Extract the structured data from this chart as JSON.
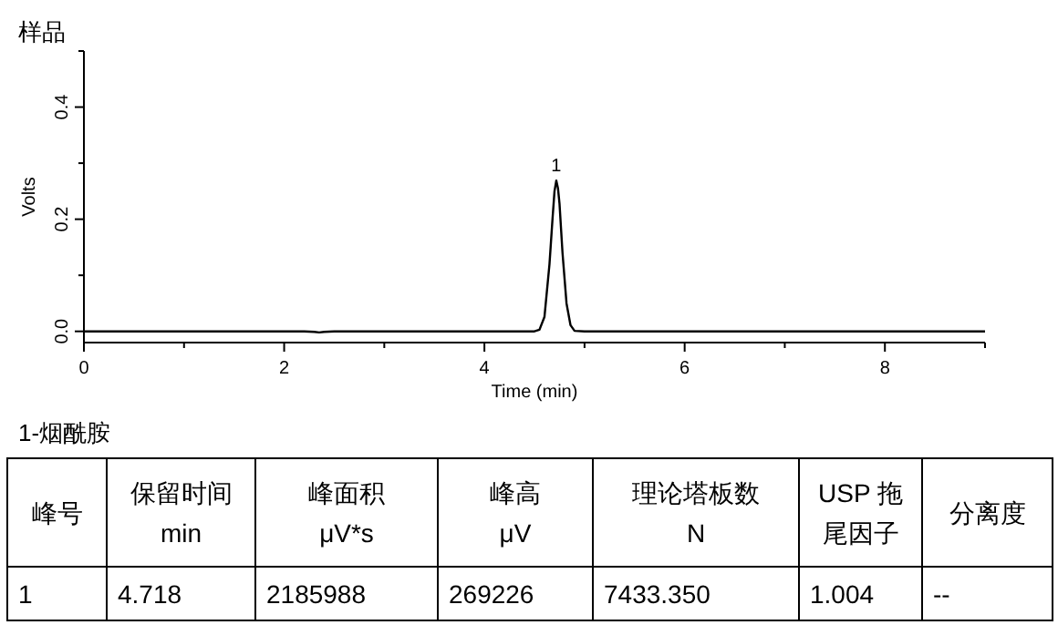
{
  "chart_data": {
    "type": "line",
    "title": "样品",
    "xlabel": "Time (min)",
    "ylabel": "Volts",
    "x": [
      0,
      2.2,
      2.3,
      2.35,
      2.4,
      2.5,
      4.5,
      4.55,
      4.6,
      4.65,
      4.68,
      4.7,
      4.718,
      4.735,
      4.75,
      4.78,
      4.82,
      4.86,
      4.9,
      5.0,
      9
    ],
    "series": [
      {
        "color": "#000000",
        "values": [
          0,
          0,
          -0.001,
          -0.002,
          -0.001,
          0,
          0,
          0.003,
          0.026,
          0.12,
          0.2,
          0.25,
          0.269,
          0.255,
          0.228,
          0.14,
          0.05,
          0.011,
          0.001,
          0,
          0
        ]
      }
    ],
    "xlim": [
      0,
      9
    ],
    "ylim": [
      -0.02,
      0.5
    ],
    "xticks": [
      0,
      2,
      4,
      6,
      8
    ],
    "yticks": [
      {
        "value": 0,
        "label": "0.0"
      },
      {
        "value": 0.2,
        "label": "0.2"
      },
      {
        "value": 0.4,
        "label": "0.4"
      }
    ],
    "grid": false,
    "marker": "none",
    "line_style": "solid",
    "annotations": [
      {
        "text": "1",
        "x": 4.718,
        "y": 0.269
      },
      "1-烟酰胺",
      "峰号",
      "保留时间\nmin",
      "峰面积\nμV*s",
      "峰高\nμV",
      "理论塔板数\nN",
      "USP 拖尾因子",
      "分离度",
      "1",
      "4.718",
      "2185988",
      "269226",
      "7433.350",
      "1.004",
      "--"
    ]
  }
}
